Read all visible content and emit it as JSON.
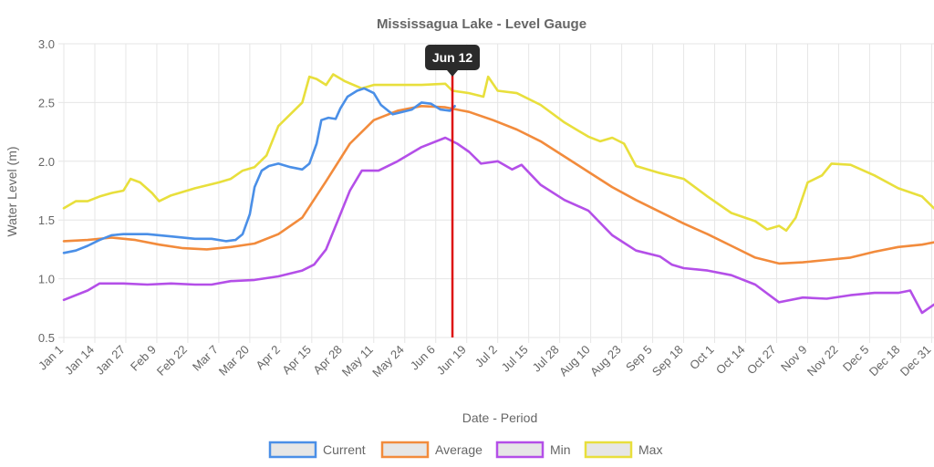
{
  "chart_data": {
    "type": "line",
    "title": "Mississagua Lake - Level Gauge",
    "xlabel": "Date - Period",
    "ylabel": "Water Level (m)",
    "ylim": [
      0.5,
      3.0
    ],
    "yticks": [
      "0.5",
      "1.0",
      "1.5",
      "2.0",
      "2.5",
      "3.0"
    ],
    "x_ticks": [
      "Jan 1",
      "Jan 14",
      "Jan 27",
      "Feb 9",
      "Feb 22",
      "Mar 7",
      "Mar 20",
      "Apr 2",
      "Apr 15",
      "Apr 28",
      "May 11",
      "May 24",
      "Jun 6",
      "Jun 19",
      "Jul 2",
      "Jul 15",
      "Jul 28",
      "Aug 10",
      "Aug 23",
      "Sep 5",
      "Sep 18",
      "Oct 1",
      "Oct 14",
      "Oct 27",
      "Nov 9",
      "Nov 22",
      "Dec 5",
      "Dec 18",
      "Dec 31"
    ],
    "grid": true,
    "legend_position": "bottom",
    "marker": {
      "label": "Jun 12",
      "day": 163,
      "color": "#dd1111"
    },
    "series": [
      {
        "name": "Current",
        "color": "#4a8fe7",
        "points": [
          [
            0,
            1.22
          ],
          [
            5,
            1.24
          ],
          [
            10,
            1.28
          ],
          [
            15,
            1.33
          ],
          [
            20,
            1.37
          ],
          [
            25,
            1.38
          ],
          [
            35,
            1.38
          ],
          [
            45,
            1.36
          ],
          [
            55,
            1.34
          ],
          [
            62,
            1.34
          ],
          [
            68,
            1.32
          ],
          [
            72,
            1.33
          ],
          [
            75,
            1.38
          ],
          [
            78,
            1.55
          ],
          [
            80,
            1.78
          ],
          [
            83,
            1.92
          ],
          [
            86,
            1.96
          ],
          [
            90,
            1.98
          ],
          [
            95,
            1.95
          ],
          [
            100,
            1.93
          ],
          [
            103,
            1.98
          ],
          [
            106,
            2.15
          ],
          [
            108,
            2.35
          ],
          [
            111,
            2.37
          ],
          [
            114,
            2.36
          ],
          [
            116,
            2.45
          ],
          [
            119,
            2.55
          ],
          [
            123,
            2.6
          ],
          [
            126,
            2.62
          ],
          [
            130,
            2.58
          ],
          [
            133,
            2.48
          ],
          [
            136,
            2.43
          ],
          [
            138,
            2.4
          ],
          [
            142,
            2.42
          ],
          [
            146,
            2.44
          ],
          [
            150,
            2.5
          ],
          [
            154,
            2.49
          ],
          [
            158,
            2.44
          ],
          [
            162,
            2.43
          ],
          [
            164,
            2.47
          ]
        ]
      },
      {
        "name": "Average",
        "color": "#f28b3c",
        "points": [
          [
            0,
            1.32
          ],
          [
            10,
            1.33
          ],
          [
            20,
            1.35
          ],
          [
            30,
            1.33
          ],
          [
            40,
            1.29
          ],
          [
            50,
            1.26
          ],
          [
            60,
            1.25
          ],
          [
            70,
            1.27
          ],
          [
            80,
            1.3
          ],
          [
            90,
            1.38
          ],
          [
            100,
            1.52
          ],
          [
            110,
            1.83
          ],
          [
            120,
            2.15
          ],
          [
            130,
            2.35
          ],
          [
            140,
            2.43
          ],
          [
            150,
            2.47
          ],
          [
            160,
            2.46
          ],
          [
            170,
            2.42
          ],
          [
            180,
            2.35
          ],
          [
            190,
            2.27
          ],
          [
            200,
            2.17
          ],
          [
            210,
            2.04
          ],
          [
            220,
            1.91
          ],
          [
            230,
            1.78
          ],
          [
            240,
            1.67
          ],
          [
            250,
            1.57
          ],
          [
            260,
            1.47
          ],
          [
            270,
            1.38
          ],
          [
            280,
            1.28
          ],
          [
            290,
            1.18
          ],
          [
            300,
            1.13
          ],
          [
            310,
            1.14
          ],
          [
            320,
            1.16
          ],
          [
            330,
            1.18
          ],
          [
            340,
            1.23
          ],
          [
            350,
            1.27
          ],
          [
            360,
            1.29
          ],
          [
            365,
            1.31
          ]
        ]
      },
      {
        "name": "Min",
        "color": "#b44fe8",
        "points": [
          [
            0,
            0.82
          ],
          [
            10,
            0.9
          ],
          [
            15,
            0.96
          ],
          [
            25,
            0.96
          ],
          [
            35,
            0.95
          ],
          [
            45,
            0.96
          ],
          [
            55,
            0.95
          ],
          [
            62,
            0.95
          ],
          [
            70,
            0.98
          ],
          [
            80,
            0.99
          ],
          [
            90,
            1.02
          ],
          [
            100,
            1.07
          ],
          [
            105,
            1.12
          ],
          [
            110,
            1.25
          ],
          [
            115,
            1.5
          ],
          [
            120,
            1.75
          ],
          [
            125,
            1.92
          ],
          [
            132,
            1.92
          ],
          [
            140,
            2.0
          ],
          [
            150,
            2.12
          ],
          [
            160,
            2.2
          ],
          [
            165,
            2.15
          ],
          [
            170,
            2.08
          ],
          [
            175,
            1.98
          ],
          [
            182,
            2.0
          ],
          [
            188,
            1.93
          ],
          [
            192,
            1.97
          ],
          [
            200,
            1.8
          ],
          [
            210,
            1.67
          ],
          [
            220,
            1.58
          ],
          [
            230,
            1.37
          ],
          [
            240,
            1.24
          ],
          [
            250,
            1.19
          ],
          [
            255,
            1.12
          ],
          [
            260,
            1.09
          ],
          [
            270,
            1.07
          ],
          [
            280,
            1.03
          ],
          [
            290,
            0.95
          ],
          [
            300,
            0.8
          ],
          [
            310,
            0.84
          ],
          [
            320,
            0.83
          ],
          [
            330,
            0.86
          ],
          [
            340,
            0.88
          ],
          [
            350,
            0.88
          ],
          [
            355,
            0.9
          ],
          [
            360,
            0.71
          ],
          [
            365,
            0.78
          ]
        ]
      },
      {
        "name": "Max",
        "color": "#e8df3c",
        "points": [
          [
            0,
            1.6
          ],
          [
            5,
            1.66
          ],
          [
            10,
            1.66
          ],
          [
            15,
            1.7
          ],
          [
            20,
            1.73
          ],
          [
            25,
            1.75
          ],
          [
            28,
            1.85
          ],
          [
            32,
            1.82
          ],
          [
            37,
            1.73
          ],
          [
            40,
            1.66
          ],
          [
            45,
            1.71
          ],
          [
            55,
            1.77
          ],
          [
            65,
            1.82
          ],
          [
            70,
            1.85
          ],
          [
            75,
            1.92
          ],
          [
            80,
            1.95
          ],
          [
            85,
            2.05
          ],
          [
            90,
            2.3
          ],
          [
            95,
            2.4
          ],
          [
            100,
            2.5
          ],
          [
            103,
            2.72
          ],
          [
            106,
            2.7
          ],
          [
            110,
            2.65
          ],
          [
            113,
            2.74
          ],
          [
            118,
            2.68
          ],
          [
            125,
            2.62
          ],
          [
            130,
            2.65
          ],
          [
            140,
            2.65
          ],
          [
            150,
            2.65
          ],
          [
            160,
            2.66
          ],
          [
            163,
            2.6
          ],
          [
            170,
            2.58
          ],
          [
            176,
            2.55
          ],
          [
            178,
            2.72
          ],
          [
            182,
            2.6
          ],
          [
            190,
            2.58
          ],
          [
            200,
            2.48
          ],
          [
            210,
            2.33
          ],
          [
            220,
            2.21
          ],
          [
            225,
            2.17
          ],
          [
            230,
            2.2
          ],
          [
            235,
            2.15
          ],
          [
            240,
            1.96
          ],
          [
            250,
            1.9
          ],
          [
            260,
            1.85
          ],
          [
            270,
            1.7
          ],
          [
            280,
            1.56
          ],
          [
            290,
            1.49
          ],
          [
            295,
            1.42
          ],
          [
            300,
            1.45
          ],
          [
            303,
            1.41
          ],
          [
            307,
            1.52
          ],
          [
            312,
            1.82
          ],
          [
            318,
            1.88
          ],
          [
            322,
            1.98
          ],
          [
            330,
            1.97
          ],
          [
            340,
            1.88
          ],
          [
            350,
            1.77
          ],
          [
            360,
            1.7
          ],
          [
            365,
            1.6
          ]
        ]
      }
    ]
  }
}
